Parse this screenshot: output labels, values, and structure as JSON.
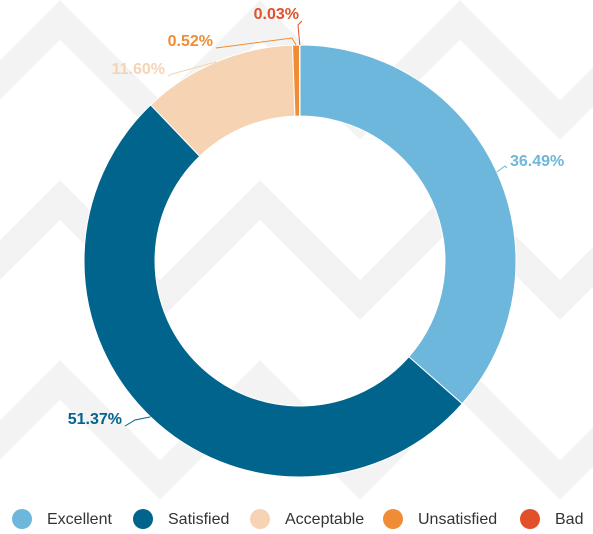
{
  "chart_data": {
    "type": "donut",
    "categories": [
      "Excellent",
      "Satisfied",
      "Acceptable",
      "Unsatisfied",
      "Bad"
    ],
    "values": [
      36.49,
      51.37,
      11.6,
      0.52,
      0.03
    ],
    "value_labels": [
      "36.49%",
      "51.37%",
      "11.60%",
      "0.52%",
      "0.03%"
    ],
    "colors": [
      "#6db6dc",
      "#00648c",
      "#f5d3b3",
      "#f08c35",
      "#e0512a"
    ],
    "legend": "bottom"
  }
}
